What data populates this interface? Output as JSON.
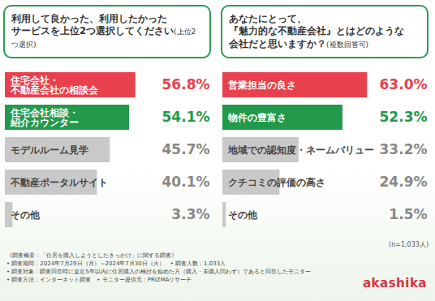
{
  "chart_data": [
    {
      "type": "bar",
      "orientation": "horizontal",
      "title": "利用して良かった、利用したかった\nサービスを上位2つ選択してください",
      "subtitle": "(上位2つ選択)",
      "categories": [
        "住宅会社・\n不動産会社の相談会",
        "住宅会社相談・\n紹介カウンター",
        "モデルルーム見学",
        "不動産ポータルサイト",
        "その他"
      ],
      "values": [
        56.8,
        54.1,
        45.7,
        40.1,
        3.3
      ],
      "value_labels": [
        "56.8%",
        "54.1%",
        "45.7%",
        "40.1%",
        "3.3%"
      ],
      "colors": [
        "#e8414d",
        "#23994b",
        "#c9c9c9",
        "#c9c9c9",
        "#c9c9c9"
      ],
      "xlim": [
        0,
        70
      ],
      "data_labels": true,
      "tick_labels": false,
      "grid": false
    },
    {
      "type": "bar",
      "orientation": "horizontal",
      "title": "あなたにとって、\n『魅力的な不動産会社』とはどのような\n会社だと思いますか？",
      "subtitle": "(複数回答可)",
      "categories": [
        "営業担当の良さ",
        "物件の豊富さ",
        "地域での認知度・ネームバリュー",
        "クチコミの評価の高さ",
        "その他"
      ],
      "values": [
        63.0,
        52.3,
        33.2,
        24.9,
        1.5
      ],
      "value_labels": [
        "63.0%",
        "52.3%",
        "33.2%",
        "24.9%",
        "1.5%"
      ],
      "colors": [
        "#e8414d",
        "#23994b",
        "#c9c9c9",
        "#c9c9c9",
        "#c9c9c9"
      ],
      "xlim": [
        0,
        70
      ],
      "data_labels": true,
      "tick_labels": false,
      "grid": false
    }
  ],
  "sample_size": "(n=1,033人)",
  "notes": [
    "《調査概要：「住居を購入しようとしたきっかけ」に関する調査》",
    "• 調査期間：2024年7月29日（月）～2024年7月30日（火）　• 調査人数：1,033人",
    "• 調査対象：調査回答時に直近5年以内に住居購入の検討を始めた方（購入・未購入問わず）であると回答したモニター",
    "• 調査方法：インターネット調査　• モニター提供元：PRIZMAリサーチ"
  ],
  "logo": "akashika"
}
